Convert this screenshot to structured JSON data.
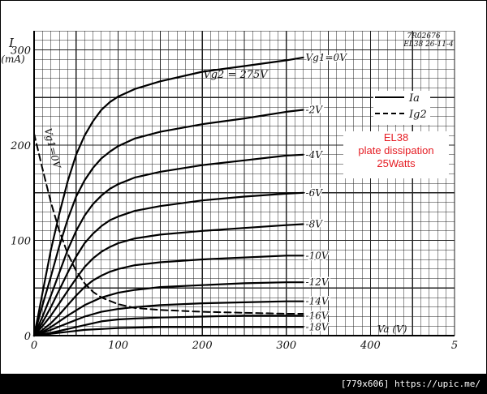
{
  "chart_data": {
    "type": "line",
    "tube": "EL38",
    "corner_code": [
      "7R02676",
      "EL38  26-11-4"
    ],
    "ylabel": "I",
    "yunit": "(mA)",
    "xlabel": "Va (V)",
    "xticks": [
      "0",
      "100",
      "200",
      "300",
      "400",
      "5"
    ],
    "yticks": [
      "0",
      "100",
      "200",
      "300"
    ],
    "xlim": [
      0,
      500
    ],
    "ylim": [
      0,
      320
    ],
    "grid": true,
    "screen_voltage_label": "Vg2 = 275V",
    "legend": {
      "position": "top-right",
      "entries": [
        {
          "label": "Ia",
          "style": "solid"
        },
        {
          "label": "Ig2",
          "style": "dashed"
        }
      ]
    },
    "series": [
      {
        "name": "Ia",
        "label": "Vg1=0V",
        "x": [
          0,
          5,
          10,
          20,
          30,
          40,
          50,
          60,
          70,
          80,
          90,
          100,
          120,
          150,
          200,
          250,
          300,
          320
        ],
        "values": [
          0,
          22,
          45,
          90,
          128,
          162,
          190,
          210,
          225,
          237,
          245,
          251,
          259,
          267,
          277,
          283,
          289,
          292
        ]
      },
      {
        "label": "-2V",
        "x": [
          0,
          10,
          20,
          30,
          40,
          50,
          60,
          70,
          80,
          90,
          100,
          120,
          150,
          200,
          250,
          300,
          320
        ],
        "values": [
          0,
          32,
          62,
          94,
          122,
          146,
          163,
          176,
          186,
          193,
          199,
          207,
          214,
          222,
          228,
          235,
          237
        ]
      },
      {
        "label": "-4V",
        "x": [
          0,
          10,
          20,
          30,
          40,
          50,
          60,
          70,
          80,
          90,
          100,
          120,
          150,
          200,
          250,
          300,
          320
        ],
        "values": [
          0,
          20,
          42,
          66,
          90,
          110,
          126,
          138,
          147,
          154,
          159,
          166,
          172,
          179,
          184,
          189,
          190
        ]
      },
      {
        "label": "-6V",
        "x": [
          0,
          10,
          20,
          30,
          40,
          50,
          60,
          70,
          80,
          90,
          100,
          120,
          150,
          200,
          250,
          300,
          320
        ],
        "values": [
          0,
          14,
          30,
          48,
          66,
          83,
          97,
          107,
          115,
          121,
          125,
          131,
          136,
          142,
          146,
          149,
          150
        ]
      },
      {
        "label": "-8V",
        "x": [
          0,
          10,
          20,
          30,
          40,
          50,
          60,
          70,
          80,
          90,
          100,
          120,
          150,
          200,
          250,
          300,
          320
        ],
        "values": [
          0,
          10,
          21,
          34,
          47,
          60,
          72,
          81,
          88,
          93,
          97,
          102,
          106,
          110,
          113,
          116,
          117
        ]
      },
      {
        "label": "-10V",
        "x": [
          0,
          10,
          20,
          30,
          40,
          50,
          60,
          70,
          80,
          90,
          100,
          120,
          150,
          200,
          250,
          300,
          320
        ],
        "values": [
          0,
          6,
          13,
          22,
          32,
          42,
          51,
          58,
          63,
          67,
          70,
          74,
          77,
          80,
          82,
          84,
          84
        ]
      },
      {
        "label": "-12V",
        "x": [
          0,
          10,
          20,
          30,
          40,
          60,
          80,
          100,
          120,
          150,
          200,
          250,
          300,
          320
        ],
        "values": [
          0,
          4,
          9,
          15,
          21,
          32,
          40,
          45,
          48,
          51,
          53,
          55,
          56,
          56
        ]
      },
      {
        "label": "-14V",
        "x": [
          0,
          10,
          20,
          40,
          60,
          80,
          100,
          120,
          150,
          200,
          250,
          300,
          320
        ],
        "values": [
          0,
          3,
          6,
          13,
          20,
          25,
          28,
          30,
          32,
          34,
          35,
          36,
          36
        ]
      },
      {
        "label": "-16V",
        "x": [
          0,
          20,
          40,
          60,
          80,
          100,
          120,
          150,
          200,
          250,
          300,
          320
        ],
        "values": [
          0,
          3,
          7,
          11,
          15,
          17,
          18,
          19,
          20,
          21,
          21,
          21
        ]
      },
      {
        "label": "-18V",
        "x": [
          0,
          20,
          40,
          60,
          80,
          100,
          150,
          200,
          250,
          300,
          320
        ],
        "values": [
          0,
          2,
          4,
          6,
          7,
          8,
          9,
          9,
          9,
          9,
          9
        ]
      },
      {
        "name": "Ig2",
        "label": "Vg1=0V",
        "style": "dashed",
        "x": [
          0,
          10,
          20,
          30,
          40,
          50,
          60,
          70,
          80,
          100,
          120,
          150,
          200,
          250,
          300,
          320
        ],
        "values": [
          212,
          175,
          140,
          110,
          86,
          68,
          55,
          46,
          40,
          33,
          29,
          27,
          25,
          24,
          23,
          23
        ]
      }
    ]
  },
  "annotation": {
    "lines": [
      "EL38",
      "plate dissipation",
      "25Watts"
    ],
    "color": "#e51c23"
  },
  "footer": {
    "text": "[779x606] https://upic.me/"
  }
}
